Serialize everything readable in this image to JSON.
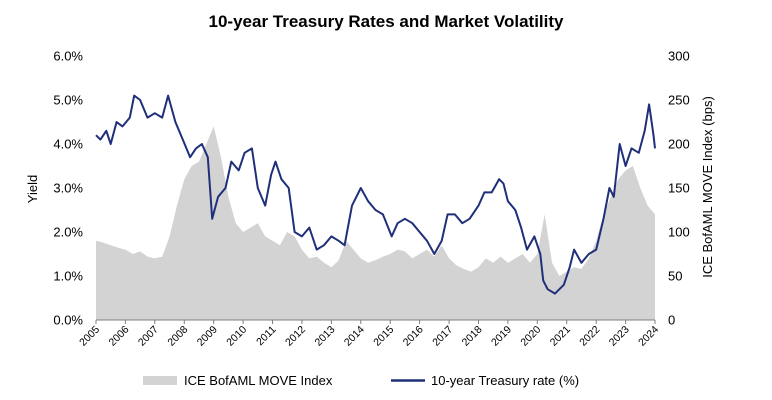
{
  "chart_data": {
    "type": "line",
    "title": "10-year Treasury Rates and Market Volatility",
    "ylabel_left": "Yield",
    "ylabel_right": "ICE BofAML MOVE Index (bps)",
    "y_left_ticks": [
      "0.0%",
      "1.0%",
      "2.0%",
      "3.0%",
      "4.0%",
      "5.0%",
      "6.0%"
    ],
    "y_left_lim": [
      0,
      6
    ],
    "y_right_ticks": [
      "0",
      "50",
      "100",
      "150",
      "200",
      "250",
      "300"
    ],
    "y_right_lim": [
      0,
      300
    ],
    "x_ticks": [
      "2005",
      "2006",
      "2007",
      "2008",
      "2009",
      "2010",
      "2011",
      "2012",
      "2013",
      "2014",
      "2015",
      "2016",
      "2017",
      "2018",
      "2019",
      "2020",
      "2021",
      "2022",
      "2023",
      "2024"
    ],
    "x_lim": [
      2005,
      2024
    ],
    "legend_position": "bottom",
    "series": [
      {
        "name": "ICE BofAML MOVE Index",
        "axis": "right",
        "style": "area",
        "color": "#d3d3d3",
        "x": [
          2005.0,
          2005.25,
          2005.5,
          2005.75,
          2006.0,
          2006.25,
          2006.5,
          2006.75,
          2007.0,
          2007.25,
          2007.5,
          2007.75,
          2008.0,
          2008.25,
          2008.5,
          2008.75,
          2009.0,
          2009.25,
          2009.5,
          2009.75,
          2010.0,
          2010.25,
          2010.5,
          2010.75,
          2011.0,
          2011.25,
          2011.5,
          2011.75,
          2012.0,
          2012.25,
          2012.5,
          2012.75,
          2013.0,
          2013.25,
          2013.5,
          2013.75,
          2014.0,
          2014.25,
          2014.5,
          2014.75,
          2015.0,
          2015.25,
          2015.5,
          2015.75,
          2016.0,
          2016.25,
          2016.5,
          2016.75,
          2017.0,
          2017.25,
          2017.5,
          2017.75,
          2018.0,
          2018.25,
          2018.5,
          2018.75,
          2019.0,
          2019.25,
          2019.5,
          2019.75,
          2020.0,
          2020.25,
          2020.5,
          2020.75,
          2021.0,
          2021.25,
          2021.5,
          2021.75,
          2022.0,
          2022.25,
          2022.5,
          2022.75,
          2023.0,
          2023.25,
          2023.5,
          2023.75,
          2024.0
        ],
        "values": [
          90,
          88,
          85,
          82,
          80,
          75,
          78,
          72,
          70,
          72,
          95,
          130,
          160,
          175,
          180,
          200,
          220,
          185,
          140,
          110,
          100,
          105,
          110,
          95,
          90,
          85,
          100,
          95,
          80,
          70,
          72,
          65,
          60,
          68,
          90,
          80,
          70,
          65,
          68,
          72,
          75,
          80,
          78,
          70,
          75,
          80,
          72,
          85,
          70,
          62,
          58,
          55,
          60,
          70,
          65,
          72,
          65,
          70,
          75,
          65,
          75,
          120,
          65,
          50,
          55,
          60,
          58,
          70,
          90,
          120,
          140,
          160,
          170,
          175,
          150,
          130,
          120
        ]
      },
      {
        "name": "10-year Treasury rate (%)",
        "axis": "left",
        "style": "line",
        "color": "#1f2f7a",
        "x": [
          2005.0,
          2005.15,
          2005.35,
          2005.5,
          2005.7,
          2005.9,
          2006.15,
          2006.3,
          2006.5,
          2006.75,
          2007.0,
          2007.25,
          2007.45,
          2007.7,
          2007.95,
          2008.2,
          2008.4,
          2008.6,
          2008.8,
          2008.95,
          2009.15,
          2009.4,
          2009.6,
          2009.85,
          2010.05,
          2010.3,
          2010.5,
          2010.75,
          2010.95,
          2011.1,
          2011.3,
          2011.55,
          2011.75,
          2012.0,
          2012.25,
          2012.5,
          2012.75,
          2013.0,
          2013.25,
          2013.45,
          2013.7,
          2014.0,
          2014.25,
          2014.5,
          2014.75,
          2015.05,
          2015.25,
          2015.5,
          2015.75,
          2016.0,
          2016.25,
          2016.5,
          2016.75,
          2016.95,
          2017.2,
          2017.45,
          2017.7,
          2018.0,
          2018.2,
          2018.45,
          2018.7,
          2018.85,
          2019.0,
          2019.25,
          2019.45,
          2019.65,
          2019.9,
          2020.1,
          2020.2,
          2020.35,
          2020.6,
          2020.9,
          2021.1,
          2021.25,
          2021.5,
          2021.75,
          2022.0,
          2022.25,
          2022.45,
          2022.6,
          2022.8,
          2023.0,
          2023.2,
          2023.45,
          2023.65,
          2023.8,
          2023.95,
          2024.0
        ],
        "values": [
          4.2,
          4.1,
          4.3,
          4.0,
          4.5,
          4.4,
          4.6,
          5.1,
          5.0,
          4.6,
          4.7,
          4.6,
          5.1,
          4.5,
          4.1,
          3.7,
          3.9,
          4.0,
          3.7,
          2.3,
          2.8,
          3.0,
          3.6,
          3.4,
          3.8,
          3.9,
          3.0,
          2.6,
          3.3,
          3.6,
          3.2,
          3.0,
          2.0,
          1.9,
          2.1,
          1.6,
          1.7,
          1.9,
          1.8,
          1.7,
          2.6,
          3.0,
          2.7,
          2.5,
          2.4,
          1.9,
          2.2,
          2.3,
          2.2,
          2.0,
          1.8,
          1.5,
          1.8,
          2.4,
          2.4,
          2.2,
          2.3,
          2.6,
          2.9,
          2.9,
          3.2,
          3.1,
          2.7,
          2.5,
          2.1,
          1.6,
          1.9,
          1.5,
          0.9,
          0.7,
          0.6,
          0.8,
          1.2,
          1.6,
          1.3,
          1.5,
          1.6,
          2.3,
          3.0,
          2.8,
          4.0,
          3.5,
          3.9,
          3.8,
          4.3,
          4.9,
          4.2,
          3.9
        ]
      }
    ]
  }
}
